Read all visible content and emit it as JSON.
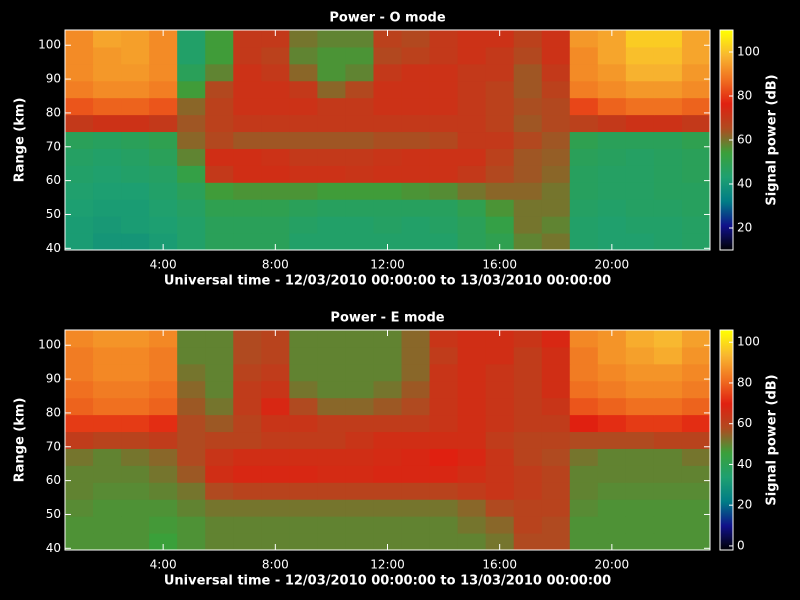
{
  "chart_data": [
    {
      "type": "heatmap",
      "title": "Power - O mode",
      "x_label": "Universal time - 12/03/2010 00:00:00 to 13/03/2010 00:00:00",
      "y_label": "Range (km)",
      "colorbar_label": "Signal power (dB)",
      "x": [
        1,
        2,
        3,
        4,
        5,
        6,
        7,
        8,
        9,
        10,
        11,
        12,
        13,
        14,
        15,
        16,
        17,
        18,
        19,
        20,
        21,
        22,
        23
      ],
      "y": [
        42,
        47,
        52,
        57,
        62,
        67,
        72,
        77,
        82,
        87,
        92,
        97,
        102
      ],
      "values": [
        [
          42,
          40,
          40,
          42,
          45,
          48,
          48,
          48,
          45,
          45,
          45,
          45,
          45,
          45,
          48,
          50,
          58,
          60,
          45,
          44,
          44,
          45,
          46
        ],
        [
          42,
          41,
          42,
          43,
          45,
          48,
          48,
          48,
          46,
          45,
          45,
          46,
          45,
          46,
          48,
          52,
          60,
          58,
          45,
          44,
          45,
          45,
          46
        ],
        [
          43,
          42,
          42,
          44,
          46,
          50,
          50,
          50,
          48,
          47,
          47,
          47,
          47,
          47,
          50,
          56,
          60,
          60,
          46,
          45,
          46,
          46,
          47
        ],
        [
          44,
          43,
          43,
          45,
          48,
          55,
          56,
          56,
          56,
          55,
          55,
          55,
          56,
          57,
          60,
          62,
          62,
          60,
          47,
          46,
          46,
          47,
          47
        ],
        [
          45,
          44,
          45,
          46,
          52,
          70,
          73,
          73,
          72,
          72,
          71,
          72,
          72,
          72,
          70,
          66,
          64,
          62,
          47,
          46,
          46,
          47,
          48
        ],
        [
          46,
          45,
          46,
          48,
          58,
          73,
          73,
          72,
          70,
          70,
          70,
          71,
          72,
          72,
          72,
          68,
          64,
          63,
          48,
          47,
          46,
          47,
          48
        ],
        [
          48,
          47,
          48,
          50,
          62,
          66,
          64,
          64,
          64,
          64,
          64,
          65,
          65,
          66,
          70,
          70,
          66,
          64,
          50,
          48,
          48,
          48,
          50
        ],
        [
          70,
          72,
          72,
          70,
          64,
          68,
          70,
          70,
          70,
          70,
          70,
          70,
          70,
          70,
          70,
          68,
          64,
          66,
          68,
          70,
          72,
          72,
          70
        ],
        [
          84,
          86,
          86,
          84,
          62,
          68,
          72,
          72,
          72,
          70,
          70,
          72,
          72,
          72,
          70,
          68,
          65,
          66,
          82,
          86,
          88,
          88,
          86
        ],
        [
          90,
          92,
          92,
          90,
          55,
          66,
          72,
          72,
          70,
          62,
          66,
          72,
          72,
          72,
          70,
          68,
          64,
          68,
          90,
          92,
          94,
          94,
          92
        ],
        [
          92,
          94,
          94,
          92,
          48,
          58,
          72,
          70,
          62,
          56,
          58,
          70,
          72,
          72,
          70,
          70,
          64,
          70,
          92,
          94,
          98,
          98,
          94
        ],
        [
          92,
          94,
          95,
          92,
          45,
          55,
          70,
          68,
          58,
          56,
          56,
          66,
          68,
          70,
          72,
          70,
          66,
          72,
          92,
          96,
          100,
          100,
          96
        ],
        [
          92,
          96,
          95,
          92,
          45,
          55,
          70,
          70,
          60,
          58,
          58,
          68,
          66,
          70,
          72,
          72,
          68,
          72,
          94,
          96,
          102,
          102,
          96
        ]
      ],
      "xlim": [
        0.5,
        23.5
      ],
      "xticks": [
        {
          "value": 4,
          "label": "4:00"
        },
        {
          "value": 8,
          "label": "8:00"
        },
        {
          "value": 12,
          "label": "12:00"
        },
        {
          "value": 16,
          "label": "16:00"
        },
        {
          "value": 20,
          "label": "20:00"
        }
      ],
      "ylim": [
        39.5,
        104.5
      ],
      "yticks": [
        40,
        50,
        60,
        70,
        80,
        90,
        100
      ],
      "zlim": [
        10,
        110
      ],
      "zticks": [
        20,
        40,
        60,
        80,
        100
      ],
      "colormap": [
        "#000000",
        "#10108a",
        "#007c86",
        "#1ea070",
        "#3aa03a",
        "#b04a20",
        "#e02010",
        "#f07020",
        "#f8b830",
        "#ffff00"
      ]
    },
    {
      "type": "heatmap",
      "title": "Power - E mode",
      "x_label": "Universal time - 12/03/2010 00:00:00 to 13/03/2010 00:00:00",
      "y_label": "Range (km)",
      "colorbar_label": "Signal power (dB)",
      "x": [
        1,
        2,
        3,
        4,
        5,
        6,
        7,
        8,
        9,
        10,
        11,
        12,
        13,
        14,
        15,
        16,
        17,
        18,
        19,
        20,
        21,
        22,
        23
      ],
      "y": [
        42,
        47,
        52,
        57,
        62,
        67,
        72,
        77,
        82,
        87,
        92,
        97,
        102
      ],
      "values": [
        [
          48,
          48,
          48,
          46,
          48,
          50,
          50,
          50,
          50,
          50,
          50,
          50,
          50,
          50,
          50,
          52,
          58,
          58,
          48,
          48,
          48,
          48,
          48
        ],
        [
          48,
          48,
          48,
          47,
          48,
          50,
          50,
          50,
          50,
          50,
          50,
          50,
          50,
          50,
          52,
          54,
          60,
          58,
          48,
          48,
          48,
          48,
          48
        ],
        [
          49,
          48,
          48,
          48,
          50,
          52,
          52,
          52,
          52,
          52,
          52,
          52,
          52,
          52,
          54,
          58,
          60,
          60,
          49,
          48,
          48,
          48,
          48
        ],
        [
          50,
          49,
          49,
          50,
          52,
          58,
          60,
          60,
          60,
          60,
          60,
          60,
          60,
          60,
          62,
          64,
          62,
          60,
          50,
          49,
          49,
          49,
          49
        ],
        [
          50,
          50,
          50,
          52,
          56,
          66,
          68,
          68,
          68,
          67,
          67,
          68,
          68,
          68,
          66,
          64,
          62,
          60,
          50,
          50,
          50,
          50,
          50
        ],
        [
          52,
          50,
          52,
          54,
          58,
          64,
          66,
          66,
          66,
          66,
          66,
          67,
          68,
          70,
          68,
          64,
          60,
          58,
          52,
          50,
          50,
          50,
          52
        ],
        [
          62,
          60,
          60,
          62,
          58,
          60,
          60,
          62,
          62,
          62,
          64,
          66,
          66,
          66,
          66,
          62,
          60,
          60,
          58,
          58,
          58,
          60,
          60
        ],
        [
          74,
          74,
          74,
          72,
          58,
          56,
          60,
          64,
          64,
          62,
          62,
          62,
          62,
          64,
          66,
          64,
          62,
          62,
          70,
          72,
          74,
          74,
          72
        ],
        [
          80,
          82,
          82,
          80,
          56,
          52,
          62,
          68,
          58,
          54,
          54,
          56,
          58,
          64,
          66,
          64,
          62,
          64,
          78,
          80,
          82,
          82,
          80
        ],
        [
          82,
          84,
          84,
          82,
          54,
          50,
          62,
          64,
          52,
          50,
          50,
          52,
          56,
          64,
          66,
          64,
          62,
          66,
          82,
          84,
          86,
          86,
          84
        ],
        [
          84,
          86,
          86,
          84,
          52,
          50,
          60,
          62,
          50,
          50,
          50,
          50,
          54,
          64,
          66,
          64,
          62,
          66,
          84,
          86,
          88,
          88,
          86
        ],
        [
          84,
          86,
          86,
          84,
          50,
          50,
          58,
          60,
          50,
          50,
          50,
          50,
          54,
          62,
          66,
          66,
          62,
          66,
          84,
          88,
          90,
          92,
          88
        ],
        [
          86,
          88,
          88,
          86,
          50,
          50,
          58,
          60,
          50,
          50,
          50,
          50,
          54,
          64,
          66,
          66,
          64,
          68,
          86,
          88,
          92,
          94,
          90
        ]
      ],
      "xlim": [
        0.5,
        23.5
      ],
      "xticks": [
        {
          "value": 4,
          "label": "4:00"
        },
        {
          "value": 8,
          "label": "8:00"
        },
        {
          "value": 12,
          "label": "12:00"
        },
        {
          "value": 16,
          "label": "16:00"
        },
        {
          "value": 20,
          "label": "20:00"
        }
      ],
      "ylim": [
        39.5,
        104.5
      ],
      "yticks": [
        40,
        50,
        60,
        70,
        80,
        90,
        100
      ],
      "zlim": [
        -2,
        106
      ],
      "zticks": [
        0,
        20,
        40,
        60,
        80,
        100
      ],
      "colormap": [
        "#000000",
        "#10108a",
        "#007c86",
        "#1ea070",
        "#3aa03a",
        "#b04a20",
        "#e02010",
        "#f07020",
        "#f8b830",
        "#ffff00"
      ]
    }
  ]
}
